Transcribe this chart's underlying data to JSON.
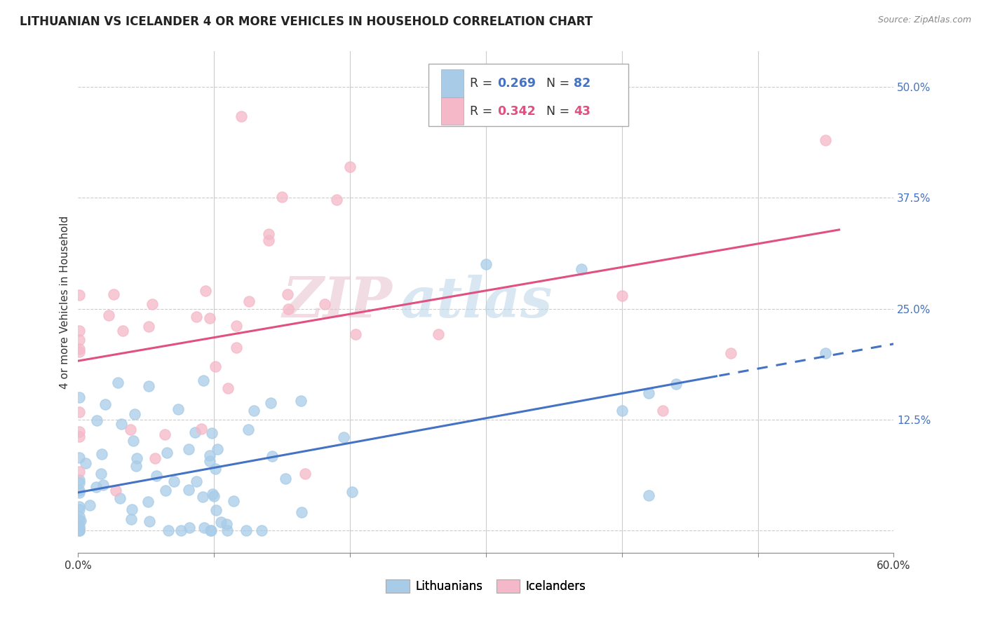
{
  "title": "LITHUANIAN VS ICELANDER 4 OR MORE VEHICLES IN HOUSEHOLD CORRELATION CHART",
  "source": "Source: ZipAtlas.com",
  "ylabel": "4 or more Vehicles in Household",
  "xlim": [
    0.0,
    0.6
  ],
  "ylim": [
    -0.025,
    0.54
  ],
  "xticks": [
    0.0,
    0.1,
    0.2,
    0.3,
    0.4,
    0.5,
    0.6
  ],
  "xticklabels": [
    "0.0%",
    "",
    "",
    "",
    "",
    "",
    "60.0%"
  ],
  "ytick_positions": [
    0.0,
    0.125,
    0.25,
    0.375,
    0.5
  ],
  "yticklabels": [
    "",
    "12.5%",
    "25.0%",
    "37.5%",
    "50.0%"
  ],
  "lithuanian_color": "#a8cce8",
  "icelander_color": "#f5b8c8",
  "lit_line_color": "#4472c4",
  "ice_line_color": "#e05080",
  "background_color": "#ffffff",
  "grid_color": "#cccccc",
  "legend_R_lit": "0.269",
  "legend_N_lit": "82",
  "legend_R_ice": "0.342",
  "legend_N_ice": "43",
  "lit_R": 0.269,
  "lit_N": 82,
  "ice_R": 0.342,
  "ice_N": 43,
  "watermark_zip": "ZIP",
  "watermark_atlas": "atlas",
  "title_fontsize": 12,
  "axis_label_fontsize": 11,
  "tick_fontsize": 11,
  "legend_text_color": "#333333",
  "ytick_color": "#4472c4"
}
